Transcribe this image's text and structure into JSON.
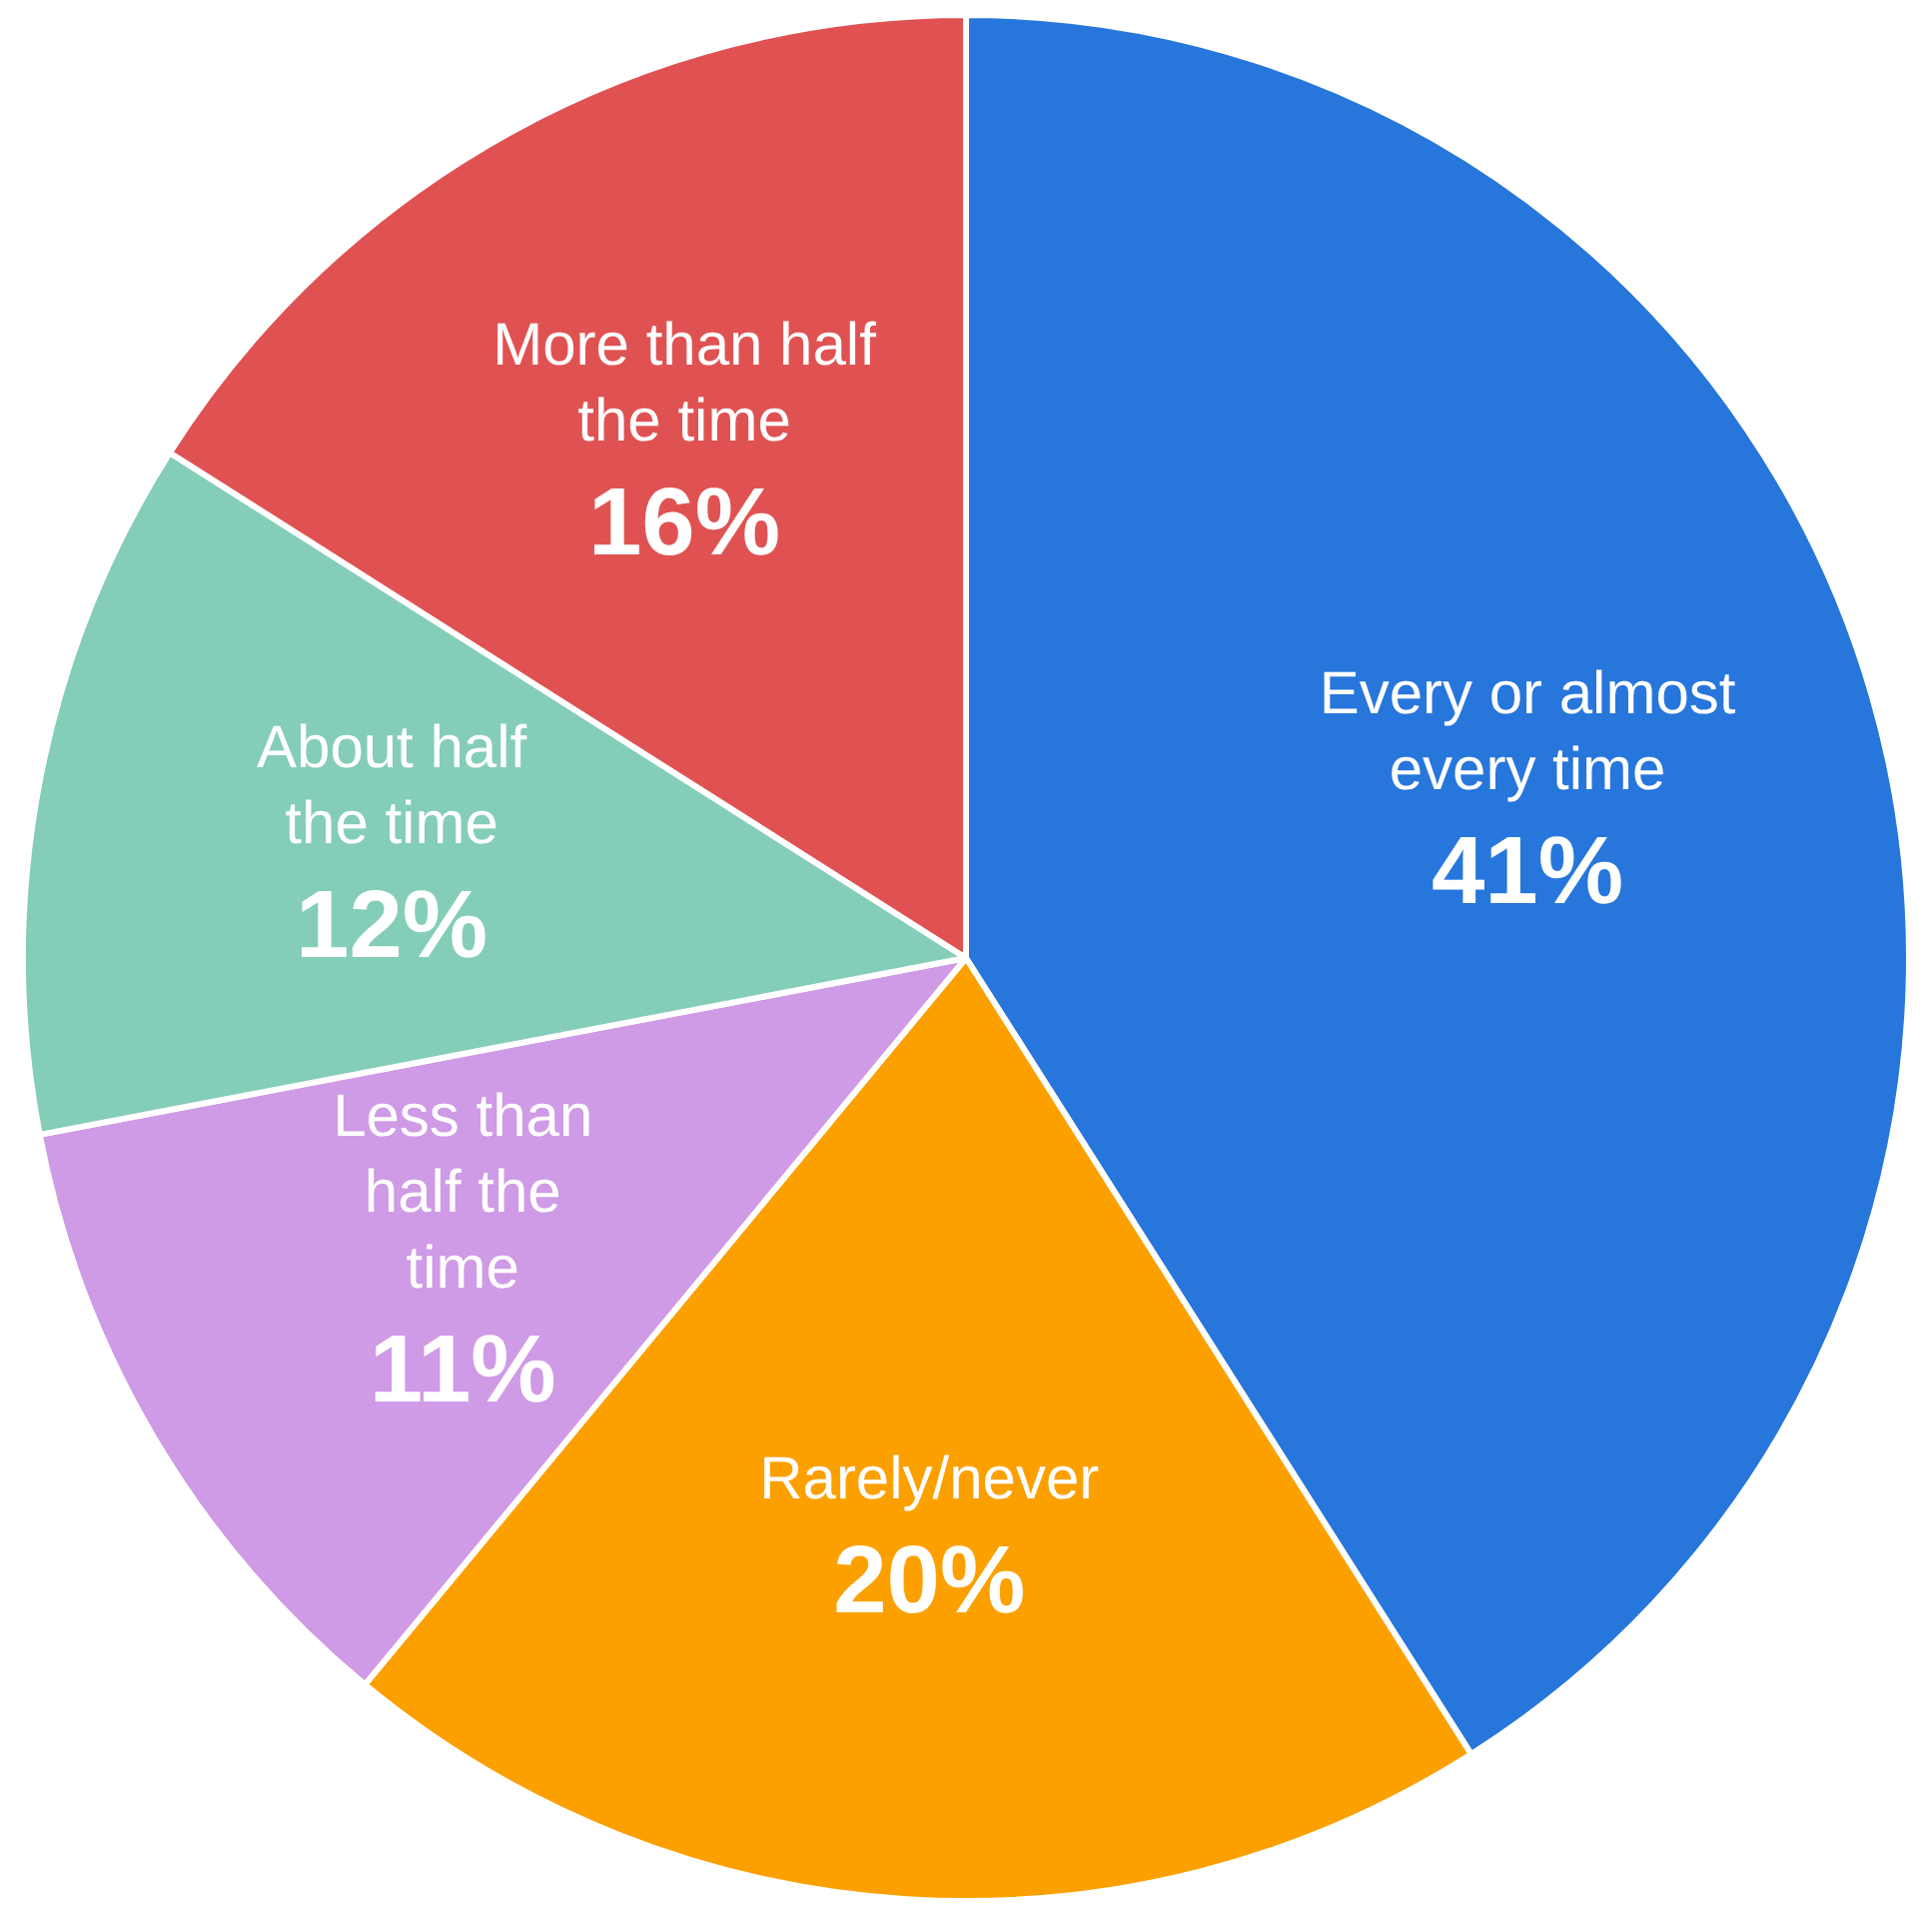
{
  "chart_data": {
    "type": "pie",
    "categories": [
      "Every or almost every time",
      "Rarely/never",
      "Less than half the time",
      "About half the time",
      "More than half the time"
    ],
    "values": [
      41,
      20,
      11,
      12,
      16
    ],
    "colors": [
      "#2776db",
      "#fca000",
      "#cf9ae6",
      "#84cdb9",
      "#e05252"
    ],
    "value_labels": [
      "41%",
      "20%",
      "11%",
      "12%",
      "16%"
    ],
    "legend": false
  }
}
